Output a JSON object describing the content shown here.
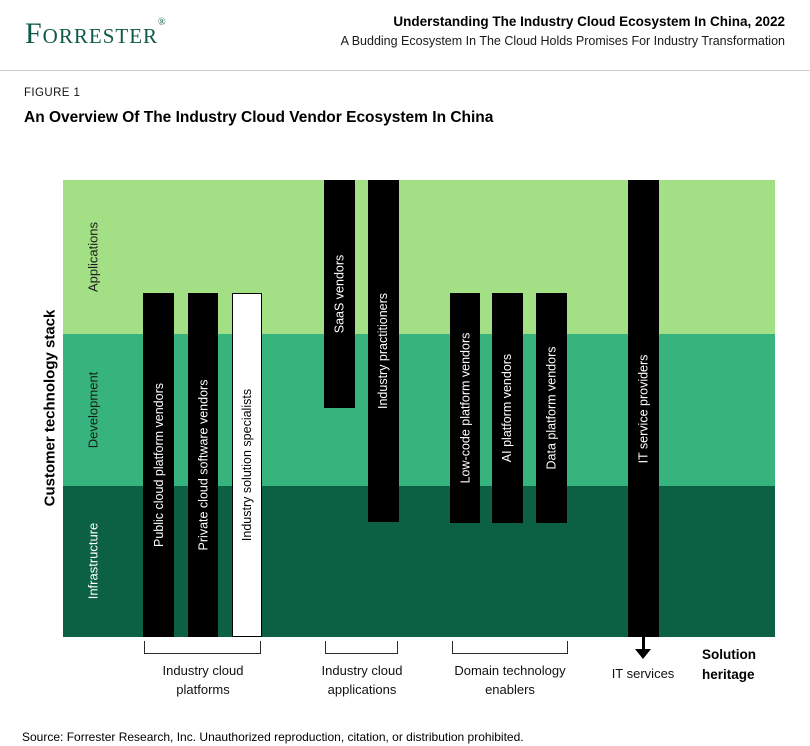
{
  "header": {
    "logo": "Forrester",
    "logo_reg": "®",
    "title": "Understanding The Industry Cloud Ecosystem In China, 2022",
    "subtitle": "A Budding Ecosystem In The Cloud Holds Promises For Industry Transformation"
  },
  "figure": {
    "label": "FIGURE 1",
    "title": "An Overview Of The Industry Cloud Vendor Ecosystem In China"
  },
  "colors": {
    "brand_green": "#0E5A48",
    "applications_band": "#A3DF85",
    "development_band": "#37B47E",
    "infrastructure_band": "#0C6044",
    "bar_black": "#000000",
    "bar_white": "#FFFFFF"
  },
  "chart": {
    "y_axis_title": "Customer technology stack",
    "bands": [
      {
        "label": "Applications",
        "color": "#A3DF85",
        "text_color": "#1b1b1b"
      },
      {
        "label": "Development",
        "color": "#37B47E",
        "text_color": "#1b1b1b"
      },
      {
        "label": "Infrastructure",
        "color": "#0C6044",
        "text_color": "#FFFFFF"
      }
    ],
    "bars": [
      {
        "label": "Public cloud platform vendors",
        "bg": "#000000",
        "fg": "#FFFFFF",
        "spans": [
          "Applications",
          "Development",
          "Infrastructure"
        ]
      },
      {
        "label": "Private cloud software vendors",
        "bg": "#000000",
        "fg": "#FFFFFF",
        "spans": [
          "Applications",
          "Development",
          "Infrastructure"
        ]
      },
      {
        "label": "Industry solution specialists",
        "bg": "#FFFFFF",
        "fg": "#000000",
        "spans": [
          "Applications",
          "Development",
          "Infrastructure"
        ]
      },
      {
        "label": "SaaS vendors",
        "bg": "#000000",
        "fg": "#FFFFFF",
        "spans": [
          "Applications",
          "Development"
        ]
      },
      {
        "label": "Industry practitioners",
        "bg": "#000000",
        "fg": "#FFFFFF",
        "spans": [
          "Applications",
          "Development",
          "Infrastructure"
        ]
      },
      {
        "label": "Low-code platform vendors",
        "bg": "#000000",
        "fg": "#FFFFFF",
        "spans": [
          "Applications",
          "Development",
          "Infrastructure"
        ]
      },
      {
        "label": "AI platform vendors",
        "bg": "#000000",
        "fg": "#FFFFFF",
        "spans": [
          "Applications",
          "Development",
          "Infrastructure"
        ]
      },
      {
        "label": "Data platform vendors",
        "bg": "#000000",
        "fg": "#FFFFFF",
        "spans": [
          "Applications",
          "Development",
          "Infrastructure"
        ]
      },
      {
        "label": "IT service providers",
        "bg": "#000000",
        "fg": "#FFFFFF",
        "spans": [
          "Applications",
          "Development",
          "Infrastructure"
        ]
      }
    ],
    "groups": [
      {
        "line1": "Industry cloud",
        "line2": "platforms"
      },
      {
        "line1": "Industry cloud",
        "line2": "applications"
      },
      {
        "line1": "Domain technology",
        "line2": "enablers"
      },
      {
        "line1": "IT services",
        "line2": ""
      }
    ],
    "x_axis_title": {
      "line1": "Solution",
      "line2": "heritage"
    }
  },
  "source": "Source: Forrester Research, Inc. Unauthorized reproduction, citation, or distribution prohibited."
}
